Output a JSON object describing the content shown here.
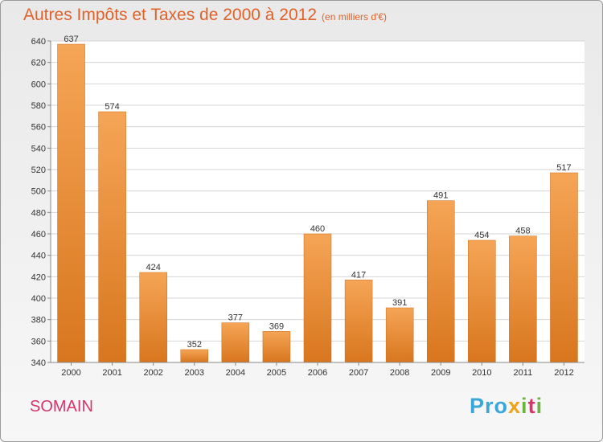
{
  "header": {
    "title": "Autres Impôts et Taxes de 2000 à 2012",
    "unit": "(en milliers d'€)"
  },
  "footer": {
    "commune": "SOMAIN",
    "logo": "Proxiti"
  },
  "colors": {
    "title": "#e0622a",
    "bar_top": "#f5a556",
    "bar_bottom": "#d8761e",
    "commune": "#d6346a"
  },
  "chart_data": {
    "type": "bar",
    "title": "Autres Impôts et Taxes de 2000 à 2012",
    "subtitle": "(en milliers d'€)",
    "xlabel": "",
    "ylabel": "",
    "categories": [
      "2000",
      "2001",
      "2002",
      "2003",
      "2004",
      "2005",
      "2006",
      "2007",
      "2008",
      "2009",
      "2010",
      "2011",
      "2012"
    ],
    "values": [
      637,
      574,
      424,
      352,
      377,
      369,
      460,
      417,
      391,
      491,
      454,
      458,
      517
    ],
    "ylim": [
      340,
      640
    ],
    "yticks": [
      340,
      360,
      380,
      400,
      420,
      440,
      460,
      480,
      500,
      520,
      540,
      560,
      580,
      600,
      620,
      640
    ],
    "grid": true,
    "legend": "none"
  }
}
